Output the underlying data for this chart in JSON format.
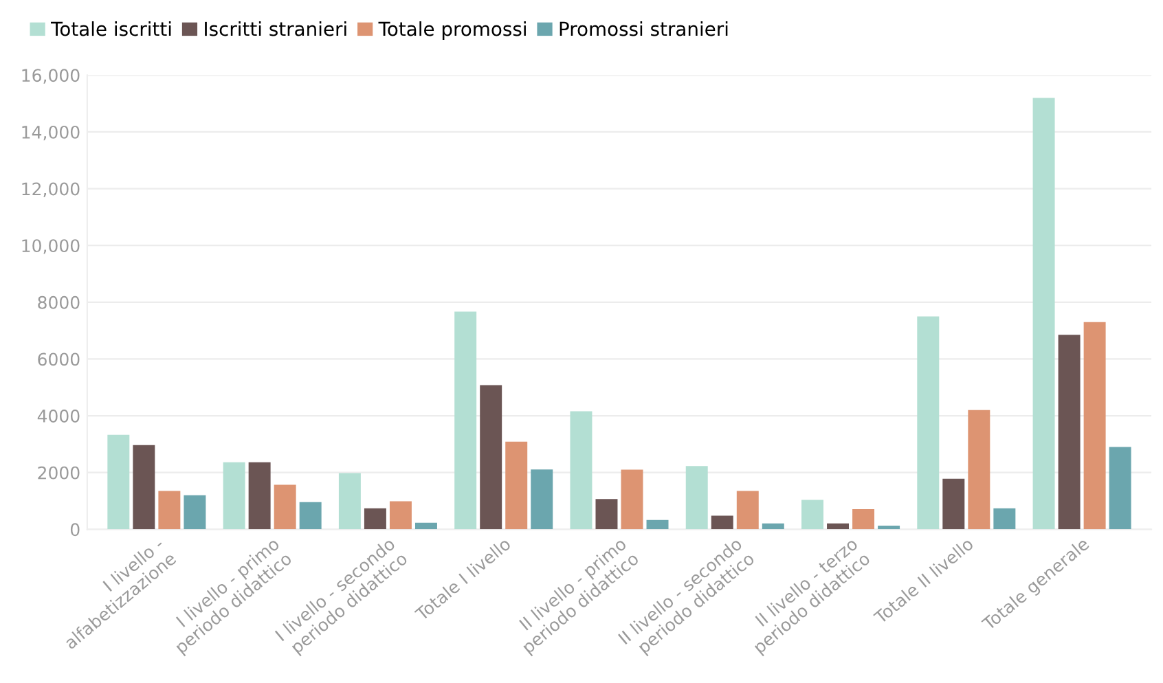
{
  "chart_data": {
    "type": "bar",
    "categories": [
      "I livello -\nalfabetizzazione",
      "I livello - primo\nperiodo didattico",
      "I livello - secondo\nperiodo didattico",
      "Totale I livello",
      "II livello - primo\nperiodo didattico",
      "II livello - secondo\nperiodo didattico",
      "II livello - terzo\nperiodo didattico",
      "Totale II livello",
      "Totale generale"
    ],
    "series": [
      {
        "name": "Totale iscritti",
        "color": "#b3dfd3",
        "values": [
          3330,
          2360,
          1980,
          7670,
          4160,
          2230,
          1040,
          7500,
          15200
        ]
      },
      {
        "name": "Iscritti stranieri",
        "color": "#6b5554",
        "values": [
          2970,
          2360,
          740,
          5080,
          1070,
          480,
          210,
          1780,
          6850
        ]
      },
      {
        "name": "Totale promossi",
        "color": "#dd9472",
        "values": [
          1350,
          1570,
          990,
          3090,
          2100,
          1350,
          710,
          4200,
          7300
        ]
      },
      {
        "name": "Promossi stranieri",
        "color": "#6ba6ae",
        "values": [
          1200,
          960,
          230,
          2110,
          330,
          210,
          130,
          740,
          2900
        ]
      }
    ],
    "ylim": [
      0,
      16000
    ],
    "yticks": [
      0,
      2000,
      4000,
      6000,
      8000,
      {
        "value": 10000,
        "label": "10,000"
      },
      {
        "value": 12000,
        "label": "12,000"
      },
      {
        "value": 14000,
        "label": "14,000"
      },
      {
        "value": 16000,
        "label": "16,000"
      }
    ],
    "grid": "y",
    "legend": "top left"
  }
}
